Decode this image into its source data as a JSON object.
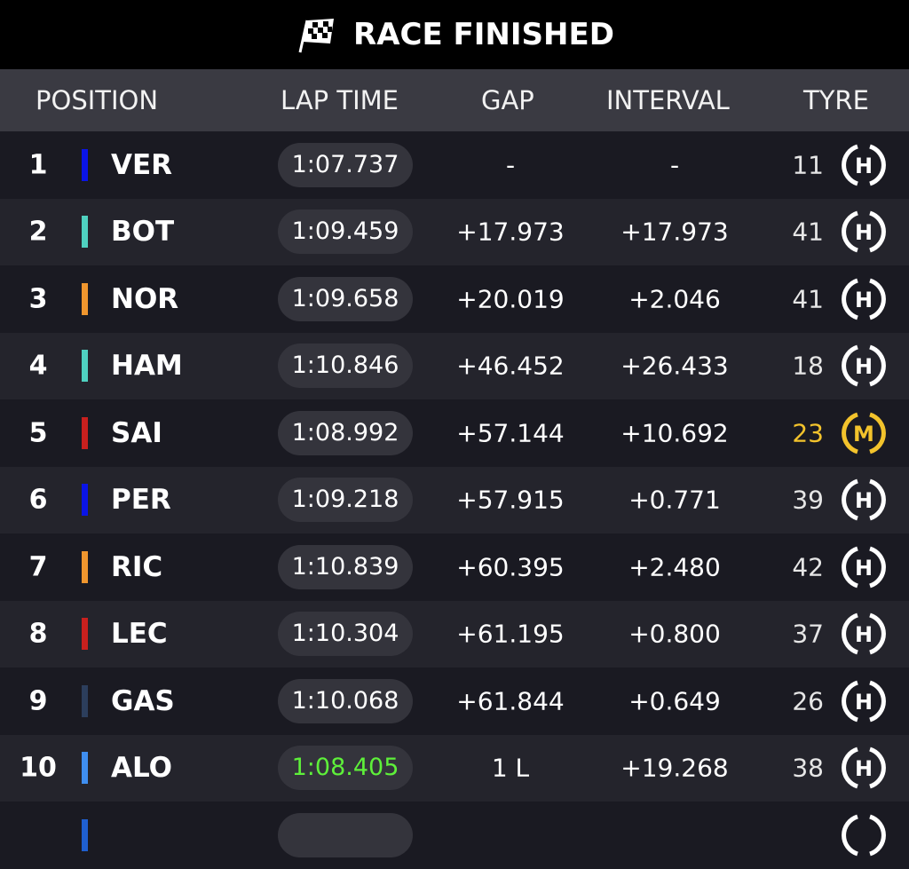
{
  "header": {
    "title": "RACE FINISHED",
    "icon": "checkered-flag-icon"
  },
  "columns": {
    "position": "POSITION",
    "lap_time": "LAP TIME",
    "gap": "GAP",
    "interval": "INTERVAL",
    "tyre": "TYRE"
  },
  "rows": [
    {
      "pos": "1",
      "driver": "VER",
      "team_color": "#0a14e6",
      "lap": "1:07.737",
      "gap": "-",
      "interval": "-",
      "laps": "11",
      "tyre": "H",
      "tyre_color": "#ffffff"
    },
    {
      "pos": "2",
      "driver": "BOT",
      "team_color": "#4fd1c0",
      "lap": "1:09.459",
      "gap": "+17.973",
      "interval": "+17.973",
      "laps": "41",
      "tyre": "H",
      "tyre_color": "#ffffff"
    },
    {
      "pos": "3",
      "driver": "NOR",
      "team_color": "#f0962e",
      "lap": "1:09.658",
      "gap": "+20.019",
      "interval": "+2.046",
      "laps": "41",
      "tyre": "H",
      "tyre_color": "#ffffff"
    },
    {
      "pos": "4",
      "driver": "HAM",
      "team_color": "#4fd1c0",
      "lap": "1:10.846",
      "gap": "+46.452",
      "interval": "+26.433",
      "laps": "18",
      "tyre": "H",
      "tyre_color": "#ffffff"
    },
    {
      "pos": "5",
      "driver": "SAI",
      "team_color": "#c8201e",
      "lap": "1:08.992",
      "gap": "+57.144",
      "interval": "+10.692",
      "laps": "23",
      "tyre": "M",
      "tyre_color": "#f3c32c"
    },
    {
      "pos": "6",
      "driver": "PER",
      "team_color": "#0a14e6",
      "lap": "1:09.218",
      "gap": "+57.915",
      "interval": "+0.771",
      "laps": "39",
      "tyre": "H",
      "tyre_color": "#ffffff"
    },
    {
      "pos": "7",
      "driver": "RIC",
      "team_color": "#f0962e",
      "lap": "1:10.839",
      "gap": "+60.395",
      "interval": "+2.480",
      "laps": "42",
      "tyre": "H",
      "tyre_color": "#ffffff"
    },
    {
      "pos": "8",
      "driver": "LEC",
      "team_color": "#c8201e",
      "lap": "1:10.304",
      "gap": "+61.195",
      "interval": "+0.800",
      "laps": "37",
      "tyre": "H",
      "tyre_color": "#ffffff"
    },
    {
      "pos": "9",
      "driver": "GAS",
      "team_color": "#2c3e5c",
      "lap": "1:10.068",
      "gap": "+61.844",
      "interval": "+0.649",
      "laps": "26",
      "tyre": "H",
      "tyre_color": "#ffffff"
    },
    {
      "pos": "10",
      "driver": "ALO",
      "team_color": "#3f8ef0",
      "lap": "1:08.405",
      "lap_best": true,
      "gap": "1 L",
      "interval": "+19.268",
      "laps": "38",
      "tyre": "H",
      "tyre_color": "#ffffff"
    },
    {
      "pos": "",
      "driver": "",
      "team_color": "#1f5fd0",
      "lap": "",
      "gap": "",
      "interval": "",
      "laps": "",
      "tyre": "",
      "tyre_color": "#ffffff"
    }
  ]
}
